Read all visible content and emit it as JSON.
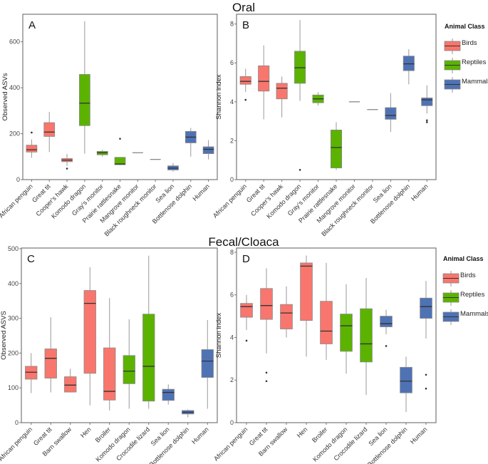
{
  "section_titles": {
    "oral": "Oral",
    "fecal": "Fecal/Cloaca"
  },
  "legend": {
    "title": "Animal Class",
    "items": [
      {
        "label": "Birds",
        "color": "#F8766D"
      },
      {
        "label": "Reptiles",
        "color": "#5BB300"
      },
      {
        "label": "Mammals",
        "color": "#4F72B5"
      }
    ]
  },
  "chart_data": [
    {
      "type": "boxplot",
      "panel": "A",
      "ylabel": "Observed ASVs",
      "ylim": [
        0,
        720
      ],
      "yticks": [
        0,
        200,
        400,
        600
      ],
      "categories": [
        "African penguin",
        "Great tit",
        "Cooper's hawk",
        "Komodo dragon",
        "Gray's monitor",
        "Prairie rattlesnake",
        "Mangrove monitor",
        "Black roughneck monitor",
        "Sea lion",
        "Bottlenose dolphin",
        "Human"
      ],
      "classes": [
        "Birds",
        "Birds",
        "Birds",
        "Reptiles",
        "Reptiles",
        "Reptiles",
        "Reptiles",
        "Reptiles",
        "Mammals",
        "Mammals",
        "Mammals"
      ],
      "boxes": [
        {
          "min": 95,
          "q1": 120,
          "median": 130,
          "q3": 150,
          "max": 175,
          "outliers": [
            205
          ]
        },
        {
          "min": 120,
          "q1": 188,
          "median": 207,
          "q3": 248,
          "max": 295,
          "outliers": []
        },
        {
          "min": 60,
          "q1": 78,
          "median": 85,
          "q3": 92,
          "max": 112,
          "outliers": [
            48
          ]
        },
        {
          "min": 113,
          "q1": 235,
          "median": 333,
          "q3": 458,
          "max": 690,
          "outliers": []
        },
        {
          "min": 100,
          "q1": 108,
          "median": 117,
          "q3": 123,
          "max": 130,
          "outliers": []
        },
        {
          "min": 63,
          "q1": 65,
          "median": 68,
          "q3": 97,
          "max": 97,
          "outliers": [
            178
          ]
        },
        {
          "min": 117,
          "q1": 117,
          "median": 117,
          "q3": 117,
          "max": 117,
          "outliers": []
        },
        {
          "min": 88,
          "q1": 88,
          "median": 88,
          "q3": 88,
          "max": 88,
          "outliers": []
        },
        {
          "min": 35,
          "q1": 42,
          "median": 50,
          "q3": 60,
          "max": 72,
          "outliers": []
        },
        {
          "min": 100,
          "q1": 160,
          "median": 185,
          "q3": 210,
          "max": 225,
          "outliers": []
        },
        {
          "min": 88,
          "q1": 113,
          "median": 132,
          "q3": 143,
          "max": 172,
          "outliers": []
        }
      ]
    },
    {
      "type": "boxplot",
      "panel": "B",
      "ylabel": "Shannon index",
      "ylim": [
        0,
        8.5
      ],
      "yticks": [
        0,
        2,
        4,
        6,
        8
      ],
      "categories": [
        "African penguin",
        "Great tit",
        "Cooper's hawk",
        "Komodo dragon",
        "Gray's monitor",
        "Prairie rattlesnake",
        "Mangrove monitor",
        "Black roughneck monitor",
        "Sea lion",
        "Bottlenose dolphin",
        "Human"
      ],
      "classes": [
        "Birds",
        "Birds",
        "Birds",
        "Reptiles",
        "Reptiles",
        "Reptiles",
        "Reptiles",
        "Reptiles",
        "Mammals",
        "Mammals",
        "Mammals"
      ],
      "boxes": [
        {
          "min": 4.5,
          "q1": 4.9,
          "median": 5.05,
          "q3": 5.3,
          "max": 5.7,
          "outliers": [
            4.1
          ]
        },
        {
          "min": 3.1,
          "q1": 4.55,
          "median": 5.05,
          "q3": 5.85,
          "max": 6.9,
          "outliers": []
        },
        {
          "min": 3.2,
          "q1": 4.15,
          "median": 4.7,
          "q3": 4.95,
          "max": 5.3,
          "outliers": []
        },
        {
          "min": 4.05,
          "q1": 4.95,
          "median": 5.75,
          "q3": 6.6,
          "max": 8.2,
          "outliers": [
            0.5
          ]
        },
        {
          "min": 3.8,
          "q1": 3.95,
          "median": 4.15,
          "q3": 4.35,
          "max": 4.5,
          "outliers": []
        },
        {
          "min": 0.5,
          "q1": 0.6,
          "median": 1.65,
          "q3": 2.55,
          "max": 2.95,
          "outliers": []
        },
        {
          "min": 4.0,
          "q1": 4.0,
          "median": 4.0,
          "q3": 4.0,
          "max": 4.0,
          "outliers": []
        },
        {
          "min": 3.6,
          "q1": 3.6,
          "median": 3.6,
          "q3": 3.6,
          "max": 3.6,
          "outliers": []
        },
        {
          "min": 2.45,
          "q1": 3.1,
          "median": 3.3,
          "q3": 3.7,
          "max": 4.45,
          "outliers": []
        },
        {
          "min": 4.9,
          "q1": 5.6,
          "median": 5.95,
          "q3": 6.35,
          "max": 6.7,
          "outliers": []
        },
        {
          "min": 3.4,
          "q1": 3.8,
          "median": 4.1,
          "q3": 4.2,
          "max": 4.85,
          "outliers": [
            2.95,
            3.05
          ]
        }
      ]
    },
    {
      "type": "boxplot",
      "panel": "C",
      "ylabel": "Observed ASVS",
      "ylim": [
        0,
        502
      ],
      "yticks": [
        0,
        100,
        200,
        300,
        400,
        500
      ],
      "categories": [
        "African penguin",
        "Great tit",
        "Barn swallow",
        "Hen",
        "Broiler",
        "Komodo dragon",
        "Crocodile lizard",
        "Sea lion",
        "Bottlenose dolphin",
        "Human"
      ],
      "classes": [
        "Birds",
        "Birds",
        "Birds",
        "Birds",
        "Birds",
        "Reptiles",
        "Reptiles",
        "Mammals",
        "Mammals",
        "Mammals"
      ],
      "boxes": [
        {
          "min": 85,
          "q1": 125,
          "median": 145,
          "q3": 162,
          "max": 200,
          "outliers": []
        },
        {
          "min": 87,
          "q1": 128,
          "median": 185,
          "q3": 212,
          "max": 303,
          "outliers": []
        },
        {
          "min": 87,
          "q1": 88,
          "median": 108,
          "q3": 132,
          "max": 155,
          "outliers": []
        },
        {
          "min": 50,
          "q1": 142,
          "median": 343,
          "q3": 380,
          "max": 447,
          "outliers": []
        },
        {
          "min": 35,
          "q1": 65,
          "median": 90,
          "q3": 215,
          "max": 358,
          "outliers": []
        },
        {
          "min": 40,
          "q1": 112,
          "median": 148,
          "q3": 193,
          "max": 297,
          "outliers": []
        },
        {
          "min": 40,
          "q1": 62,
          "median": 162,
          "q3": 312,
          "max": 480,
          "outliers": []
        },
        {
          "min": 52,
          "q1": 64,
          "median": 87,
          "q3": 96,
          "max": 110,
          "outliers": []
        },
        {
          "min": 15,
          "q1": 25,
          "median": 30,
          "q3": 35,
          "max": 38,
          "outliers": []
        },
        {
          "min": 40,
          "q1": 130,
          "median": 177,
          "q3": 210,
          "max": 295,
          "outliers": []
        }
      ]
    },
    {
      "type": "boxplot",
      "panel": "D",
      "ylabel": "Shannon index",
      "ylim": [
        0,
        8.2
      ],
      "yticks": [
        0,
        2,
        4,
        6,
        8
      ],
      "categories": [
        "African penguin",
        "Great tit",
        "Barn swallow",
        "Hen",
        "Broiler",
        "Komodo dragon",
        "Crocodile lizard",
        "Sea lion",
        "Bottlenose dolphin",
        "Human"
      ],
      "classes": [
        "Birds",
        "Birds",
        "Birds",
        "Birds",
        "Birds",
        "Reptiles",
        "Reptiles",
        "Mammals",
        "Mammals",
        "Mammals"
      ],
      "boxes": [
        {
          "min": 4.35,
          "q1": 4.95,
          "median": 5.45,
          "q3": 5.6,
          "max": 6.0,
          "outliers": [
            3.85
          ]
        },
        {
          "min": 3.25,
          "q1": 4.85,
          "median": 5.5,
          "q3": 6.3,
          "max": 7.25,
          "outliers": [
            2.35,
            1.95
          ]
        },
        {
          "min": 4.0,
          "q1": 4.4,
          "median": 5.15,
          "q3": 5.55,
          "max": 6.4,
          "outliers": []
        },
        {
          "min": 3.1,
          "q1": 4.8,
          "median": 7.35,
          "q3": 7.5,
          "max": 7.85,
          "outliers": []
        },
        {
          "min": 2.95,
          "q1": 3.7,
          "median": 4.3,
          "q3": 5.7,
          "max": 7.5,
          "outliers": []
        },
        {
          "min": 2.3,
          "q1": 3.35,
          "median": 4.55,
          "q3": 5.1,
          "max": 6.5,
          "outliers": []
        },
        {
          "min": 1.3,
          "q1": 2.85,
          "median": 3.7,
          "q3": 5.35,
          "max": 6.8,
          "outliers": []
        },
        {
          "min": 4.15,
          "q1": 4.5,
          "median": 4.65,
          "q3": 5.0,
          "max": 5.3,
          "outliers": [
            3.6
          ]
        },
        {
          "min": 0.5,
          "q1": 1.4,
          "median": 1.95,
          "q3": 2.6,
          "max": 3.1,
          "outliers": []
        },
        {
          "min": 3.95,
          "q1": 4.9,
          "median": 5.45,
          "q3": 5.85,
          "max": 6.65,
          "outliers": [
            2.25,
            1.6
          ]
        }
      ]
    }
  ]
}
